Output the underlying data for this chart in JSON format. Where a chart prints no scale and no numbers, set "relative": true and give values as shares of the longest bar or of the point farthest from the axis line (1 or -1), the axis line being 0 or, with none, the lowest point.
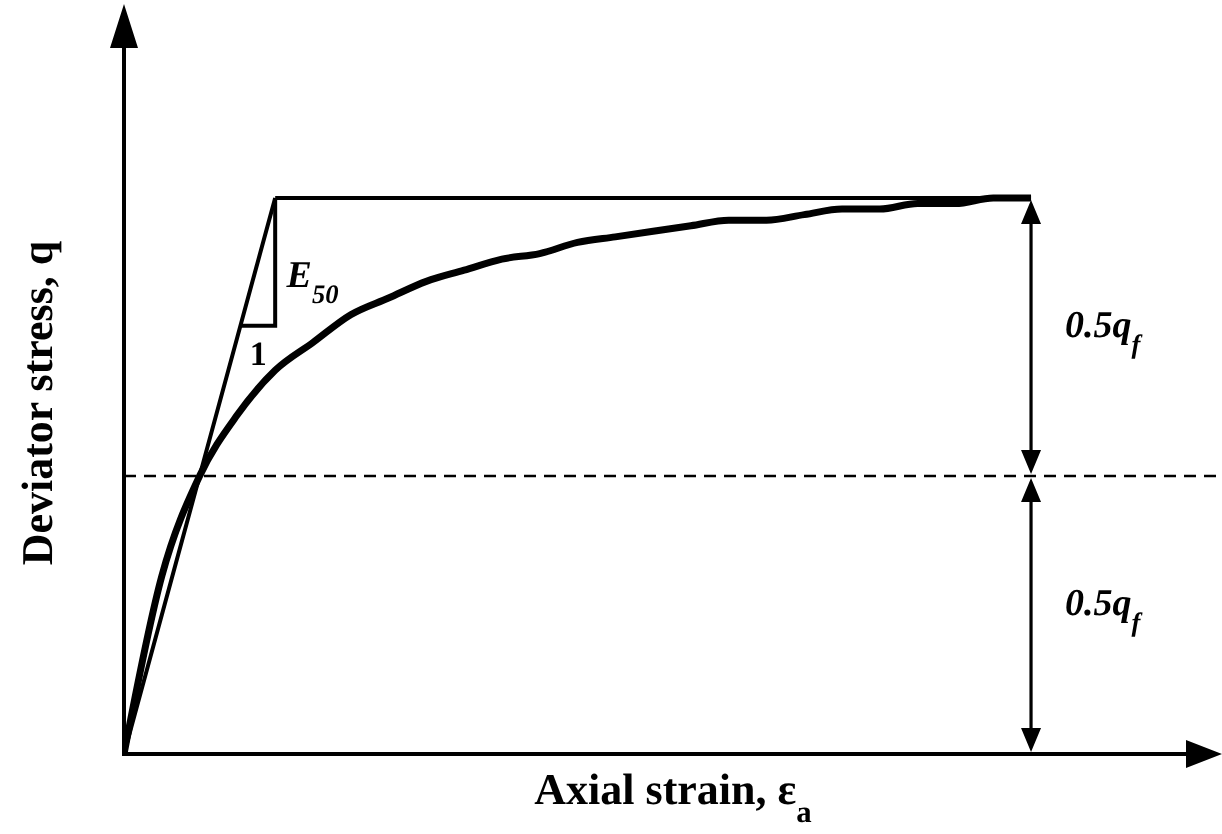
{
  "chart_data": {
    "type": "line",
    "relative": true,
    "xlabel": "Axial strain, ε$_{a}$",
    "ylabel": "Deviator stress, q",
    "categories": [
      null,
      null,
      null,
      null,
      null,
      null,
      null,
      null,
      null,
      null,
      null,
      null,
      null,
      null,
      null,
      null,
      null,
      null,
      null,
      null,
      null,
      null,
      null,
      null,
      null,
      null,
      null,
      null,
      null,
      null
    ],
    "series": [
      {
        "color": "#000000",
        "values": [
          0,
          0.32,
          0.5,
          0.61,
          0.69,
          0.74,
          0.79,
          0.82,
          0.85,
          0.87,
          0.89,
          0.9,
          0.92,
          0.93,
          0.94,
          0.95,
          0.96,
          0.96,
          0.97,
          0.98,
          0.98,
          0.99,
          0.99,
          1.0,
          1.0,
          null,
          null,
          null,
          null,
          null
        ]
      },
      {
        "color": "#000000",
        "values": [
          0,
          0.25,
          0.5,
          0.75,
          1,
          null,
          null,
          null,
          null,
          null,
          null,
          null,
          null,
          null,
          null,
          null,
          null,
          null,
          null,
          null,
          null,
          null,
          null,
          null,
          null,
          null,
          null,
          null,
          null,
          null
        ]
      },
      {
        "color": "#000000",
        "values": [
          null,
          null,
          null,
          null,
          1,
          1,
          1,
          1,
          1,
          1,
          1,
          1,
          1,
          1,
          1,
          1,
          1,
          1,
          1,
          1,
          1,
          1,
          1,
          1,
          1,
          null,
          null,
          null,
          null,
          null
        ]
      }
    ],
    "ref_lines": [
      {
        "axis": "y",
        "value": 0.5,
        "color": "#000000",
        "line_style": "dashed"
      }
    ],
    "annotations": [
      "E$_{50}$",
      "1",
      "0.5q$_{f}$",
      "0.5q$_{f}$"
    ]
  }
}
